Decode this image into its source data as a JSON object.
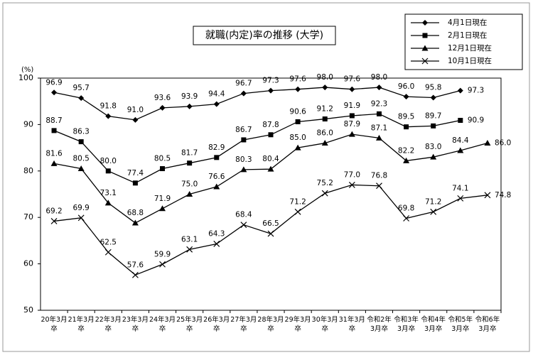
{
  "chart_data": {
    "type": "line",
    "title": "就職(内定)率の推移 (大学)",
    "y_unit": "(%)",
    "categories": [
      "20年3月\n卒",
      "21年3月\n卒",
      "22年3月\n卒",
      "23年3月\n卒",
      "24年3月\n卒",
      "25年3月\n卒",
      "26年3月\n卒",
      "27年3月\n卒",
      "28年3月\n卒",
      "29年3月\n卒",
      "30年3月\n卒",
      "31年3月\n卒",
      "令和2年\n3月卒",
      "令和3年\n3月卒",
      "令和4年\n3月卒",
      "令和5年\n3月卒",
      "令和6年\n3月卒"
    ],
    "series": [
      {
        "name": "4月1日現在",
        "color": "#000000",
        "marker": "diamond",
        "values": [
          96.9,
          95.7,
          91.8,
          91.0,
          93.6,
          93.9,
          94.4,
          96.7,
          97.3,
          97.6,
          98.0,
          97.6,
          98.0,
          96.0,
          95.8,
          97.3,
          null
        ],
        "value_labels": [
          "96.9",
          "95.7",
          "91.8",
          "91.0",
          "93.6",
          "93.9",
          "94.4",
          "96.7",
          "97.3",
          "97.6",
          "98.0",
          "97.6",
          "98.0",
          "96.0",
          "95.8",
          "97.3",
          null
        ]
      },
      {
        "name": "2月1日現在",
        "color": "#000000",
        "marker": "square",
        "values": [
          88.7,
          86.3,
          80.0,
          77.4,
          80.5,
          81.7,
          82.9,
          86.7,
          87.8,
          90.6,
          91.2,
          91.9,
          92.3,
          89.5,
          89.7,
          90.9,
          null
        ],
        "value_labels": [
          "88.7",
          "86.3",
          "80.0",
          "77.4",
          "80.5",
          "81.7",
          "82.9",
          "86.7",
          "87.8",
          "90.6",
          "91.2",
          "91.9",
          "92.3",
          "89.5",
          "89.7",
          "90.9",
          null
        ]
      },
      {
        "name": "12月1日現在",
        "color": "#000000",
        "marker": "triangle",
        "values": [
          81.6,
          80.5,
          73.1,
          68.8,
          71.9,
          75.0,
          76.6,
          80.3,
          80.4,
          85.0,
          86.0,
          87.9,
          87.1,
          82.2,
          83.0,
          84.4,
          86.0
        ],
        "value_labels": [
          "81.6",
          "80.5",
          "73.1",
          "68.8",
          "71.9",
          "75.0",
          "76.6",
          "80.3",
          "80.4",
          "85.0",
          "86.0",
          "87.9",
          "87.1",
          "82.2",
          "83.0",
          "84.4",
          "86.0"
        ]
      },
      {
        "name": "10月1日現在",
        "color": "#000000",
        "marker": "x",
        "values": [
          69.2,
          69.9,
          62.5,
          57.6,
          59.9,
          63.1,
          64.3,
          68.4,
          66.5,
          71.2,
          75.2,
          77.0,
          76.8,
          69.8,
          71.2,
          74.1,
          74.8
        ],
        "value_labels": [
          "69.2",
          "69.9",
          "62.5",
          "57.6",
          "59.9",
          "63.1",
          "64.3",
          "68.4",
          "66.5",
          "71.2",
          "75.2",
          "77.0",
          "76.8",
          "69.8",
          "71.2",
          "74.1",
          "74.8"
        ]
      }
    ],
    "ylim": [
      50,
      100
    ],
    "yticks": [
      50,
      60,
      70,
      80,
      90,
      100
    ],
    "grid": false,
    "legend": "upper right"
  }
}
